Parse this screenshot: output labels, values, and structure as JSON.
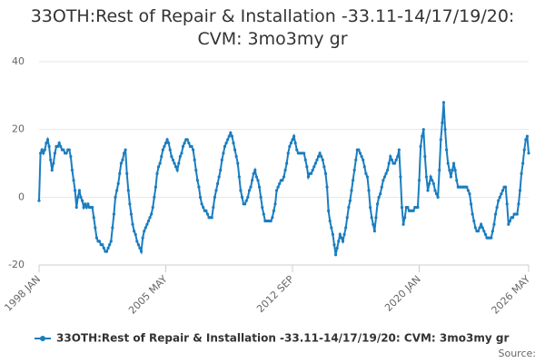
{
  "chart_data": {
    "type": "line",
    "title": "33OTH:Rest of Repair & Installation -33.11-14/17/19/20: CVM: 3mo3my gr",
    "source": "Source:",
    "categories": [
      "1998 JAN",
      null,
      null,
      null,
      null,
      null,
      null,
      null,
      null,
      null,
      null,
      null,
      null,
      null,
      null,
      null,
      null,
      null,
      null,
      null,
      null,
      null,
      null,
      null,
      null,
      null,
      null,
      null,
      null,
      null,
      null,
      null,
      null,
      null,
      null,
      null,
      null,
      null,
      null,
      null,
      null,
      null,
      null,
      null,
      null,
      null,
      null,
      null,
      null,
      null,
      null,
      null,
      null,
      null,
      null,
      null,
      null,
      null,
      null,
      null,
      null,
      null,
      null,
      null,
      null,
      null,
      null,
      null,
      null,
      null,
      null,
      null,
      null,
      null,
      null,
      null,
      null,
      null,
      null,
      null,
      null,
      null,
      null,
      null,
      null,
      null,
      null,
      null,
      "2005 MAY",
      null,
      null,
      null,
      null,
      null,
      null,
      null,
      null,
      null,
      null,
      null,
      null,
      null,
      null,
      null,
      null,
      null,
      null,
      null,
      null,
      null,
      null,
      null,
      null,
      null,
      null,
      null,
      null,
      null,
      null,
      null,
      null,
      null,
      null,
      null,
      null,
      null,
      null,
      null,
      null,
      null,
      null,
      null,
      null,
      null,
      null,
      null,
      null,
      null,
      null,
      null,
      null,
      null,
      null,
      null,
      null,
      null,
      null,
      null,
      null,
      null,
      null,
      null,
      null,
      null,
      null,
      null,
      null,
      null,
      null,
      null,
      null,
      null,
      null,
      null,
      null,
      null,
      null,
      null,
      null,
      null,
      null,
      null,
      null,
      null,
      null,
      null,
      "2012 SEP",
      null,
      null,
      null,
      null,
      null,
      null,
      null,
      null,
      null,
      null,
      null,
      null,
      null,
      null,
      null,
      null,
      null,
      null,
      null,
      null,
      null,
      null,
      null,
      null,
      null,
      null,
      null,
      null,
      null,
      null,
      null,
      null,
      null,
      null,
      null,
      null,
      null,
      null,
      null,
      null,
      null,
      null,
      null,
      null,
      null,
      null,
      null,
      null,
      null,
      null,
      null,
      null,
      null,
      null,
      null,
      null,
      null,
      null,
      null,
      null,
      null,
      null,
      null,
      null,
      null,
      null,
      null,
      null,
      null,
      null,
      null,
      null,
      null,
      null,
      null,
      null,
      null,
      null,
      null,
      null,
      null,
      null,
      null,
      null,
      null,
      null,
      null,
      "2020 JAN",
      null,
      null,
      null,
      null,
      null,
      null,
      null,
      null,
      null,
      null,
      null,
      null,
      null,
      null,
      null,
      null,
      null,
      null,
      null,
      null,
      null,
      null,
      null,
      null,
      null,
      null,
      null,
      null,
      null,
      null,
      null,
      null,
      null,
      null,
      null,
      null,
      null,
      null,
      null,
      null,
      null,
      null,
      null,
      null,
      null,
      null,
      null,
      null,
      null,
      null,
      null,
      null,
      null,
      null,
      null,
      null,
      null,
      null,
      null,
      null,
      null,
      null,
      null,
      null,
      null,
      null,
      null,
      null,
      null,
      null,
      null,
      null,
      null,
      null,
      null,
      "2026 MAY"
    ],
    "series": [
      {
        "name": "33OTH:Rest of Repair & Installation -33.11-14/17/19/20: CVM: 3mo3my gr",
        "color": "#1a7dc0",
        "values": [
          -1,
          13,
          14,
          13,
          14,
          16,
          17,
          15,
          11,
          8,
          10,
          13,
          15,
          15,
          16,
          15,
          14,
          14,
          13,
          13,
          14,
          14,
          12,
          8,
          5,
          2,
          -3,
          0,
          2,
          0,
          -1,
          -3,
          -2,
          -3,
          -2,
          -3,
          -3,
          -3,
          -6,
          -9,
          -12,
          -13,
          -13,
          -14,
          -14,
          -15,
          -16,
          -16,
          -15,
          -14,
          -13,
          -9,
          -5,
          0,
          2,
          4,
          7,
          10,
          11,
          13,
          14,
          7,
          2,
          -2,
          -5,
          -8,
          -10,
          -11,
          -13,
          -14,
          -15,
          -16,
          -12,
          -10,
          -9,
          -8,
          -7,
          -6,
          -5,
          -3,
          0,
          3,
          7,
          9,
          10,
          12,
          14,
          15,
          16,
          17,
          16,
          14,
          12,
          11,
          10,
          9,
          8,
          10,
          12,
          13,
          15,
          16,
          17,
          17,
          16,
          15,
          15,
          14,
          11,
          8,
          5,
          3,
          0,
          -2,
          -3,
          -4,
          -4,
          -5,
          -6,
          -6,
          -6,
          -3,
          0,
          2,
          4,
          6,
          8,
          11,
          13,
          15,
          16,
          17,
          18,
          19,
          18,
          16,
          14,
          12,
          10,
          6,
          2,
          0,
          -2,
          -2,
          -1,
          0,
          2,
          3,
          5,
          7,
          8,
          6,
          5,
          3,
          0,
          -3,
          -5,
          -7,
          -7,
          -7,
          -7,
          -7,
          -6,
          -4,
          -2,
          2,
          3,
          4,
          5,
          5,
          6,
          8,
          10,
          13,
          15,
          16,
          17,
          18,
          16,
          14,
          13,
          13,
          13,
          13,
          13,
          11,
          9,
          6,
          7,
          7,
          8,
          9,
          10,
          11,
          12,
          13,
          12,
          11,
          9,
          7,
          3,
          -4,
          -7,
          -9,
          -11,
          -14,
          -17,
          -15,
          -13,
          -11,
          -12,
          -13,
          -11,
          -9,
          -6,
          -3,
          -1,
          2,
          5,
          8,
          11,
          14,
          14,
          13,
          12,
          11,
          9,
          7,
          6,
          2,
          -3,
          -6,
          -8,
          -10,
          -6,
          -2,
          0,
          1,
          3,
          5,
          6,
          7,
          8,
          10,
          12,
          11,
          10,
          10,
          11,
          12,
          14,
          6,
          -3,
          -8,
          -6,
          -3,
          -3,
          -4,
          -4,
          -4,
          -4,
          -3,
          -3,
          -3,
          5,
          15,
          18,
          20,
          12,
          6,
          2,
          4,
          6,
          5,
          4,
          2,
          1,
          0,
          8,
          17,
          22,
          28,
          20,
          14,
          10,
          8,
          6,
          8,
          10,
          8,
          5,
          3,
          3,
          3,
          3,
          3,
          3,
          3,
          2,
          1,
          -2,
          -5,
          -7,
          -9,
          -10,
          -10,
          -9,
          -8,
          -9,
          -10,
          -11,
          -12,
          -12,
          -12,
          -12,
          -10,
          -8,
          -5,
          -3,
          -1,
          0,
          1,
          2,
          3,
          3,
          -2,
          -8,
          -7,
          -6,
          -6,
          -5,
          -5,
          -5,
          -2,
          2,
          7,
          10,
          14,
          17,
          18,
          13
        ]
      }
    ],
    "ylim": [
      -20,
      40
    ],
    "yticks": [
      -20,
      0,
      20,
      40
    ],
    "grid": true,
    "legend": "bottom"
  }
}
